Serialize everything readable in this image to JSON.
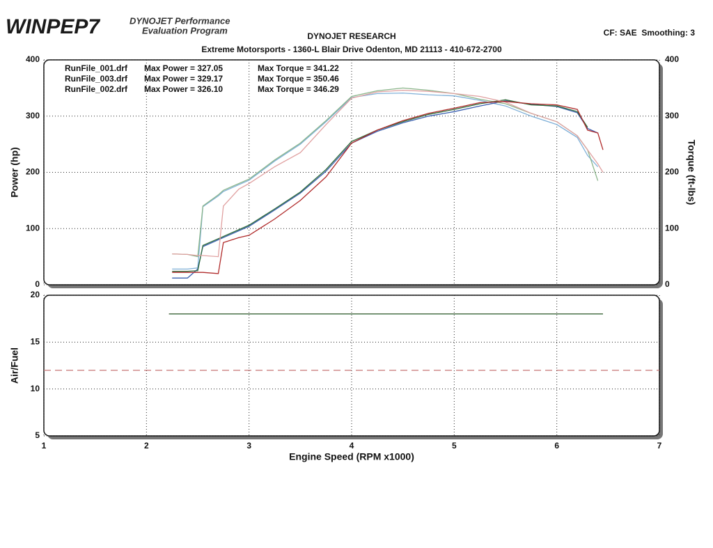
{
  "header": {
    "logo": "WINPEP7",
    "program_line1": "DYNOJET Performance",
    "program_line2": "Evaluation Program",
    "company": "DYNOJET RESEARCH",
    "address": "Extreme Motorsports - 1360-L Blair Drive Odenton, MD 21113 - 410-672-2700",
    "settings": "CF: SAE  Smoothing: 3"
  },
  "chart_data": [
    {
      "type": "line",
      "y_label": "Power (hp)",
      "y2_label": "Torque (ft-lbs)",
      "xlim": [
        1,
        7
      ],
      "xticks": [
        1,
        2,
        3,
        4,
        5,
        6,
        7
      ],
      "ylim": [
        0,
        400
      ],
      "yticks": [
        0,
        100,
        200,
        300,
        400
      ],
      "y2lim": [
        0,
        400
      ],
      "y2ticks": [
        0,
        100,
        200,
        300,
        400
      ],
      "grid": true,
      "x": [
        2.25,
        2.4,
        2.5,
        2.55,
        2.7,
        2.75,
        2.9,
        3.0,
        3.25,
        3.5,
        3.75,
        4.0,
        4.25,
        4.5,
        4.75,
        5.0,
        5.25,
        5.5,
        5.75,
        6.0,
        6.2,
        6.3,
        6.4,
        6.45
      ],
      "series": [
        {
          "name": "RunFile_001.drf",
          "max_power_label": "Max Power = 327.05",
          "max_torque_label": "Max Torque = 341.22",
          "color": "#3a5fb0",
          "torque_color": "#7fb0d8",
          "values": [
            12,
            12,
            28,
            68,
            80,
            84,
            96,
            104,
            133,
            163,
            202,
            252,
            273,
            288,
            300,
            308,
            318,
            327,
            321,
            317,
            306,
            278,
            270,
            null
          ],
          "torque_values": [
            28,
            28,
            30,
            139,
            158,
            166,
            178,
            186,
            220,
            250,
            290,
            333,
            340,
            341,
            338,
            336,
            328,
            318,
            300,
            285,
            262,
            230,
            210,
            null
          ]
        },
        {
          "name": "RunFile_003.drf",
          "max_power_label": "Max Power = 329.17",
          "max_torque_label": "Max Torque = 350.46",
          "color": "#2e6b3a",
          "torque_color": "#8ab58a",
          "values": [
            24,
            24,
            25,
            70,
            82,
            86,
            98,
            106,
            135,
            165,
            205,
            255,
            275,
            290,
            303,
            312,
            322,
            329,
            320,
            318,
            308,
            280,
            null,
            null
          ],
          "torque_values": [
            55,
            54,
            50,
            140,
            160,
            168,
            180,
            188,
            222,
            252,
            292,
            335,
            345,
            350,
            346,
            340,
            330,
            322,
            305,
            290,
            265,
            240,
            185,
            null
          ]
        },
        {
          "name": "RunFile_002.drf",
          "max_power_label": "Max Power = 326.10",
          "max_torque_label": "Max Torque = 346.29",
          "color": "#b02a2a",
          "torque_color": "#e0a0a0",
          "values": [
            22,
            22,
            22,
            22,
            20,
            75,
            84,
            88,
            117,
            150,
            192,
            252,
            275,
            292,
            305,
            314,
            324,
            326,
            322,
            320,
            312,
            275,
            270,
            240
          ],
          "torque_values": [
            55,
            54,
            52,
            52,
            50,
            140,
            170,
            180,
            210,
            235,
            285,
            332,
            343,
            346,
            344,
            340,
            335,
            325,
            305,
            290,
            265,
            240,
            215,
            200
          ]
        }
      ]
    },
    {
      "type": "line",
      "y_label": "Air/Fuel",
      "x_label": "Engine Speed (RPM x1000)",
      "xlim": [
        1,
        7
      ],
      "xticks": [
        1,
        2,
        3,
        4,
        5,
        6,
        7
      ],
      "ylim": [
        5,
        20
      ],
      "yticks": [
        5,
        10,
        15,
        20
      ],
      "grid": true,
      "x": [
        2.22,
        6.45
      ],
      "series": [
        {
          "color": "#b02a2a",
          "values": [
            18,
            18
          ]
        },
        {
          "color": "#2e6b3a",
          "values": [
            18,
            18
          ]
        }
      ],
      "reference_line": {
        "value": 12,
        "color": "#c87878",
        "dashed": true
      }
    }
  ]
}
